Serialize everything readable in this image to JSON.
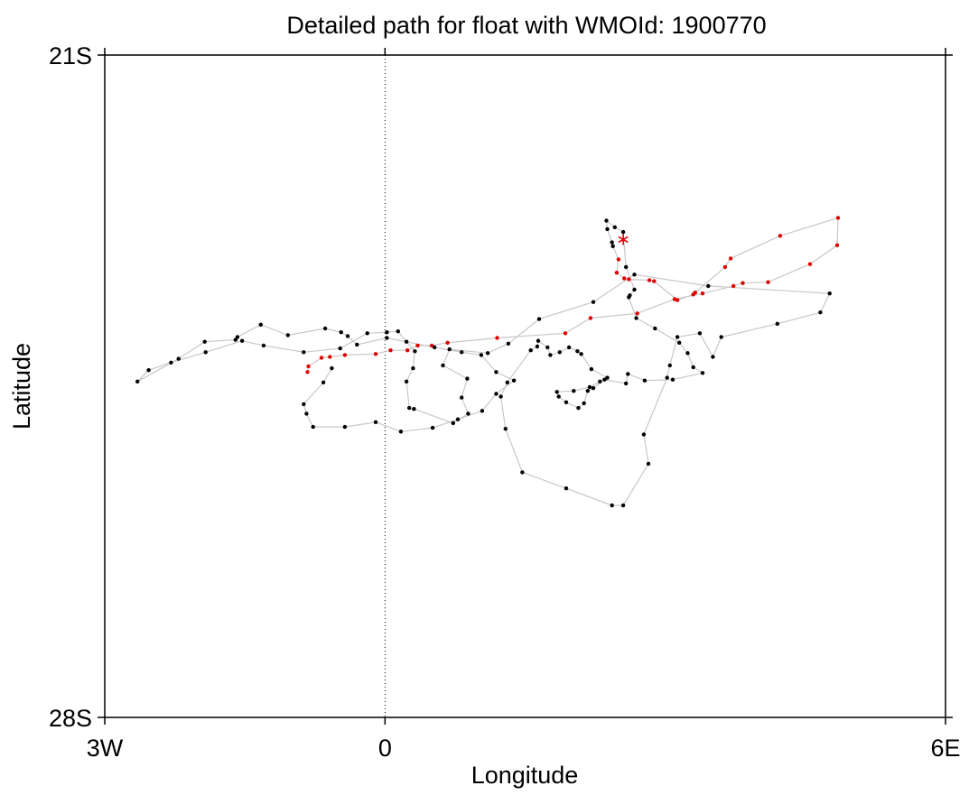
{
  "chart_data": {
    "type": "scatter",
    "title": "Detailed path for float with WMOId: 1900770",
    "xlabel": "Longitude",
    "ylabel": "Latitude",
    "xlim": [
      -3,
      6
    ],
    "ylim": [
      -28,
      -21
    ],
    "x_ticks": [
      {
        "value": -3,
        "label": "3W"
      },
      {
        "value": 0,
        "label": "0"
      },
      {
        "value": 6,
        "label": "6E"
      }
    ],
    "y_ticks": [
      {
        "value": -21,
        "label": "21S"
      },
      {
        "value": -28,
        "label": "28S"
      }
    ],
    "reference_line": {
      "x": 0,
      "style": "dotted"
    },
    "grid": false,
    "colors": {
      "path": "#c8c8c8",
      "black_points": "#000000",
      "red_points": "#e00000",
      "marker": "#e00000"
    },
    "series": [
      {
        "points": [
          [
            -0.83,
            -24.35
          ],
          [
            -0.82,
            -24.29
          ],
          [
            -0.68,
            -24.2
          ],
          [
            -0.59,
            -24.19
          ],
          [
            -0.43,
            -24.17
          ],
          [
            -0.1,
            -24.16
          ],
          [
            0.06,
            -24.12
          ],
          [
            0.24,
            -24.12
          ],
          [
            0.35,
            -24.07
          ],
          [
            0.5,
            -24.07
          ],
          [
            0.67,
            -24.04
          ],
          [
            1.2,
            -23.99
          ],
          [
            1.93,
            -23.94
          ],
          [
            2.2,
            -23.78
          ],
          [
            2.7,
            -23.73
          ],
          [
            3.1,
            -23.58
          ],
          [
            3.4,
            -23.52
          ],
          [
            3.73,
            -23.44
          ],
          [
            3.83,
            -23.41
          ],
          [
            4.1,
            -23.4
          ],
          [
            4.55,
            -23.21
          ],
          [
            4.84,
            -23.01
          ],
          [
            4.85,
            -22.72
          ],
          [
            4.23,
            -22.91
          ],
          [
            3.7,
            -23.15
          ],
          [
            3.64,
            -23.24
          ],
          [
            3.32,
            -23.51
          ],
          [
            3.3,
            -23.53
          ],
          [
            3.13,
            -23.59
          ],
          [
            2.88,
            -23.39
          ],
          [
            2.83,
            -23.38
          ],
          [
            2.61,
            -23.37
          ],
          [
            2.56,
            -23.36
          ],
          [
            2.48,
            -23.3
          ],
          [
            2.5,
            -23.16
          ],
          [
            2.44,
            -23.02
          ],
          [
            2.43,
            -22.98
          ],
          [
            2.38,
            -22.84
          ],
          [
            2.37,
            -22.75
          ],
          [
            2.46,
            -22.82
          ],
          [
            2.55,
            -22.87
          ],
          [
            2.58,
            -23.24
          ],
          [
            2.67,
            -23.48
          ],
          [
            2.62,
            -23.54
          ],
          [
            2.61,
            -23.56
          ],
          [
            2.69,
            -23.78
          ],
          [
            2.89,
            -23.89
          ],
          [
            3.15,
            -24.04
          ],
          [
            3.24,
            -24.15
          ],
          [
            3.3,
            -24.3
          ],
          [
            3.4,
            -24.36
          ],
          [
            3.08,
            -24.43
          ],
          [
            2.78,
            -24.44
          ],
          [
            2.6,
            -24.37
          ],
          [
            2.58,
            -24.47
          ],
          [
            2.35,
            -24.43
          ],
          [
            2.23,
            -24.52
          ],
          [
            2.17,
            -24.55
          ],
          [
            2.13,
            -24.68
          ],
          [
            2.07,
            -24.73
          ],
          [
            1.94,
            -24.67
          ],
          [
            1.86,
            -24.61
          ],
          [
            1.84,
            -24.56
          ],
          [
            2.02,
            -24.55
          ],
          [
            2.19,
            -24.51
          ],
          [
            2.3,
            -24.45
          ],
          [
            2.38,
            -24.41
          ],
          [
            2.21,
            -24.32
          ],
          [
            2.1,
            -24.16
          ],
          [
            2.06,
            -24.13
          ],
          [
            1.97,
            -24.09
          ],
          [
            1.87,
            -24.14
          ],
          [
            1.77,
            -24.17
          ],
          [
            1.74,
            -24.09
          ],
          [
            1.64,
            -24.02
          ],
          [
            1.63,
            -24.08
          ],
          [
            1.56,
            -24.12
          ],
          [
            1.31,
            -24.46
          ],
          [
            1.24,
            -24.61
          ],
          [
            1.29,
            -24.95
          ],
          [
            1.47,
            -25.41
          ],
          [
            1.94,
            -25.58
          ],
          [
            2.43,
            -25.76
          ],
          [
            2.55,
            -25.76
          ],
          [
            2.82,
            -25.32
          ],
          [
            2.77,
            -25.01
          ],
          [
            3.02,
            -24.41
          ],
          [
            3.05,
            -24.28
          ],
          [
            3.13,
            -23.98
          ],
          [
            3.37,
            -23.94
          ],
          [
            3.51,
            -24.19
          ],
          [
            3.6,
            -23.98
          ],
          [
            4.2,
            -23.84
          ],
          [
            4.66,
            -23.72
          ],
          [
            4.76,
            -23.52
          ],
          [
            3.46,
            -23.44
          ],
          [
            2.67,
            -23.32
          ],
          [
            2.23,
            -23.61
          ],
          [
            1.65,
            -23.79
          ],
          [
            1.32,
            -24.05
          ],
          [
            1.1,
            -24.15
          ],
          [
            0.69,
            -24.11
          ],
          [
            0.62,
            -24.28
          ],
          [
            0.88,
            -24.42
          ],
          [
            0.82,
            -24.62
          ],
          [
            0.89,
            -24.79
          ],
          [
            0.73,
            -24.89
          ],
          [
            0.31,
            -24.74
          ],
          [
            0.26,
            -24.73
          ],
          [
            0.23,
            -24.45
          ],
          [
            0.3,
            -24.31
          ],
          [
            0.32,
            -24.13
          ],
          [
            0.23,
            -24.03
          ],
          [
            0.14,
            -23.92
          ],
          [
            0.02,
            -23.93
          ],
          [
            -0.19,
            -23.94
          ],
          [
            -0.48,
            -24.1
          ],
          [
            -0.87,
            -24.14
          ],
          [
            -1.3,
            -24.07
          ],
          [
            -1.53,
            -24.02
          ],
          [
            -1.92,
            -24.14
          ],
          [
            -2.29,
            -24.25
          ],
          [
            -2.53,
            -24.33
          ],
          [
            -2.65,
            -24.45
          ],
          [
            -2.21,
            -24.21
          ],
          [
            -1.93,
            -24.03
          ],
          [
            -1.6,
            -24.01
          ],
          [
            -1.58,
            -23.98
          ],
          [
            -1.33,
            -23.85
          ],
          [
            -1.04,
            -23.96
          ],
          [
            -0.64,
            -23.89
          ],
          [
            -0.47,
            -23.93
          ],
          [
            -0.4,
            -23.97
          ],
          [
            -0.3,
            -24.06
          ],
          [
            0.02,
            -23.99
          ],
          [
            0.53,
            -24.09
          ],
          [
            0.82,
            -24.14
          ],
          [
            1.03,
            -24.17
          ],
          [
            1.19,
            -24.35
          ],
          [
            1.38,
            -24.44
          ],
          [
            1.19,
            -24.58
          ],
          [
            1.04,
            -24.76
          ],
          [
            0.78,
            -24.85
          ],
          [
            0.51,
            -24.94
          ],
          [
            0.17,
            -24.98
          ],
          [
            -0.1,
            -24.88
          ],
          [
            -0.43,
            -24.93
          ],
          [
            -0.77,
            -24.93
          ],
          [
            -0.84,
            -24.79
          ],
          [
            -0.87,
            -24.69
          ],
          [
            -0.66,
            -24.46
          ],
          [
            -0.57,
            -24.31
          ]
        ]
      }
    ]
  }
}
